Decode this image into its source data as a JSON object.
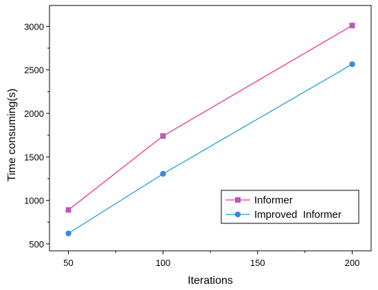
{
  "chart_data": {
    "type": "line",
    "title": "",
    "xlabel": "Iterations",
    "ylabel": "Time consuming(s)",
    "x": [
      50,
      100,
      200
    ],
    "xlim": [
      40,
      210
    ],
    "ylim": [
      420,
      3240
    ],
    "xticks": [
      50,
      100,
      150,
      200
    ],
    "yticks": [
      500,
      1000,
      1500,
      2000,
      2500,
      3000
    ],
    "grid": false,
    "legend_position": "bottom-right",
    "series": [
      {
        "name": "Informer",
        "values": [
          890,
          1740,
          3010
        ],
        "marker": "square",
        "line_color": "#f0328c",
        "marker_color": "#b75ab8"
      },
      {
        "name": "Improved  Informer",
        "values": [
          620,
          1305,
          2565
        ],
        "marker": "circle",
        "line_color": "#1f9fd6",
        "marker_color": "#3a86e6"
      }
    ]
  }
}
